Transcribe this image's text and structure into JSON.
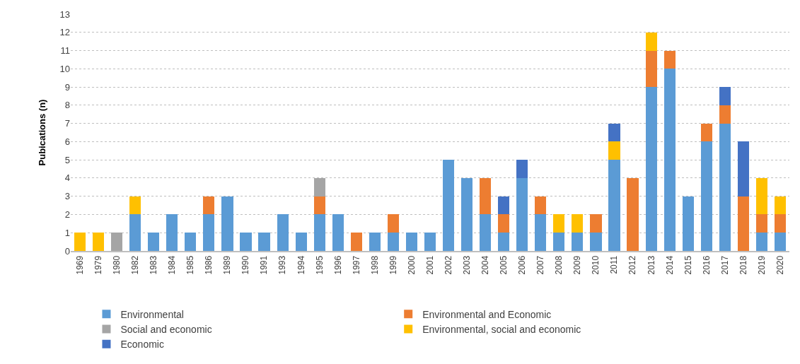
{
  "chart_data": {
    "type": "bar",
    "ylabel": "Pubications (n)",
    "stacked": true,
    "grid": "y",
    "legend": "bottom",
    "categories": [
      "1969",
      "1979",
      "1980",
      "1982",
      "1983",
      "1984",
      "1985",
      "1986",
      "1989",
      "1990",
      "1991",
      "1993",
      "1994",
      "1995",
      "1996",
      "1997",
      "1998",
      "1999",
      "2000",
      "2001",
      "2002",
      "2003",
      "2004",
      "2005",
      "2006",
      "2007",
      "2008",
      "2009",
      "2010",
      "2011",
      "2012",
      "2013",
      "2014",
      "2015",
      "2016",
      "2017",
      "2018",
      "2019",
      "2020"
    ],
    "ylim": [
      0,
      13
    ],
    "yticks": [
      0,
      1,
      2,
      3,
      4,
      5,
      6,
      7,
      8,
      9,
      10,
      11,
      12,
      13
    ],
    "series": [
      {
        "name": "Environmental",
        "color": "#5b9bd5",
        "values": [
          0,
          0,
          0,
          2,
          1,
          2,
          1,
          2,
          3,
          1,
          1,
          2,
          1,
          2,
          2,
          0,
          1,
          1,
          1,
          1,
          5,
          4,
          2,
          1,
          4,
          2,
          1,
          1,
          1,
          5,
          0,
          9,
          10,
          3,
          6,
          7,
          0,
          1,
          1
        ]
      },
      {
        "name": "Environmental and Economic",
        "color": "#ed7d31",
        "values": [
          0,
          0,
          0,
          0,
          0,
          0,
          0,
          1,
          0,
          0,
          0,
          0,
          0,
          1,
          0,
          1,
          0,
          1,
          0,
          0,
          0,
          0,
          2,
          1,
          0,
          1,
          0,
          0,
          1,
          0,
          4,
          2,
          1,
          0,
          1,
          1,
          3,
          1,
          1
        ]
      },
      {
        "name": "Social and economic",
        "color": "#a5a5a5",
        "values": [
          0,
          0,
          1,
          0,
          0,
          0,
          0,
          0,
          0,
          0,
          0,
          0,
          0,
          1,
          0,
          0,
          0,
          0,
          0,
          0,
          0,
          0,
          0,
          0,
          0,
          0,
          0,
          0,
          0,
          0,
          0,
          0,
          0,
          0,
          0,
          0,
          0,
          0,
          0
        ]
      },
      {
        "name": "Environmental, social and economic",
        "color": "#ffc000",
        "values": [
          1,
          1,
          0,
          1,
          0,
          0,
          0,
          0,
          0,
          0,
          0,
          0,
          0,
          0,
          0,
          0,
          0,
          0,
          0,
          0,
          0,
          0,
          0,
          0,
          0,
          0,
          1,
          1,
          0,
          1,
          0,
          1,
          0,
          0,
          0,
          0,
          0,
          2,
          1
        ]
      },
      {
        "name": "Economic",
        "color": "#4472c4",
        "values": [
          0,
          0,
          0,
          0,
          0,
          0,
          0,
          0,
          0,
          0,
          0,
          0,
          0,
          0,
          0,
          0,
          0,
          0,
          0,
          0,
          0,
          0,
          0,
          1,
          1,
          0,
          0,
          0,
          0,
          1,
          0,
          0,
          0,
          0,
          0,
          1,
          3,
          0,
          0
        ]
      }
    ]
  }
}
